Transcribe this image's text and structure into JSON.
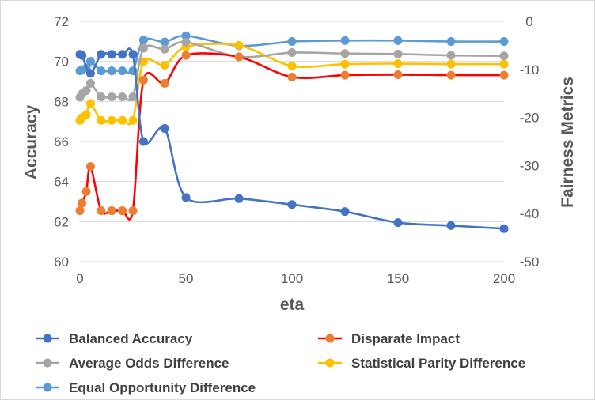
{
  "chart_data": {
    "type": "line",
    "xlabel": "eta",
    "ylabel_left": "Accuracy",
    "ylabel_right": "Fairness Metrics",
    "xlim": [
      0,
      200
    ],
    "ylim_left": [
      60,
      72
    ],
    "ylim_right": [
      -50,
      0
    ],
    "x_ticks": [
      0,
      50,
      100,
      150,
      200
    ],
    "y_ticks_left": [
      60,
      62,
      64,
      66,
      68,
      70,
      72
    ],
    "y_ticks_right": [
      -50,
      -40,
      -30,
      -20,
      -10,
      0
    ],
    "grid": true,
    "legend_position": "bottom",
    "series": [
      {
        "name": "Balanced Accuracy",
        "axis": "left",
        "line_color": "#4472c4",
        "marker_color": "#4472c4",
        "x": [
          0,
          1,
          5,
          10,
          15,
          20,
          25,
          30,
          40,
          50,
          75,
          100,
          125,
          150,
          175,
          200
        ],
        "y": [
          70.35,
          70.3,
          69.4,
          70.35,
          70.35,
          70.35,
          70.35,
          66.0,
          66.65,
          63.2,
          63.15,
          62.85,
          62.5,
          61.95,
          61.8,
          61.65
        ]
      },
      {
        "name": "Disparate Impact",
        "axis": "right",
        "line_color": "#ff0000",
        "marker_color": "#ed7d31",
        "x": [
          0,
          1,
          3,
          5,
          10,
          15,
          20,
          25,
          30,
          40,
          50,
          75,
          100,
          125,
          150,
          175,
          200
        ],
        "y": [
          -39.4,
          -37.8,
          -35.4,
          -30.2,
          -39.4,
          -39.4,
          -39.4,
          -39.4,
          -12.2,
          -12.9,
          -7.1,
          -7.4,
          -11.6,
          -11.2,
          -11.1,
          -11.2,
          -11.2
        ]
      },
      {
        "name": "Average Odds Difference",
        "axis": "right",
        "line_color": "#a5a5a5",
        "marker_color": "#a5a5a5",
        "x": [
          0,
          1,
          3,
          5,
          10,
          15,
          20,
          25,
          30,
          40,
          50,
          75,
          100,
          125,
          150,
          175,
          200
        ],
        "y": [
          -15.8,
          -15.1,
          -14.4,
          -12.9,
          -15.7,
          -15.7,
          -15.7,
          -15.7,
          -5.6,
          -5.8,
          -4.3,
          -7.4,
          -6.5,
          -6.7,
          -6.8,
          -7.1,
          -7.2
        ]
      },
      {
        "name": "Statistical Parity Difference",
        "axis": "right",
        "line_color": "#ffc000",
        "marker_color": "#ffc000",
        "x": [
          0,
          1,
          3,
          5,
          10,
          15,
          20,
          25,
          30,
          40,
          50,
          75,
          100,
          125,
          150,
          175,
          200
        ],
        "y": [
          -20.6,
          -20.0,
          -19.4,
          -17.1,
          -20.6,
          -20.6,
          -20.6,
          -20.6,
          -8.4,
          -9.1,
          -5.3,
          -5.0,
          -9.3,
          -8.9,
          -8.8,
          -8.9,
          -8.9
        ]
      },
      {
        "name": "Equal Opportunity Difference",
        "axis": "right",
        "line_color": "#5b9bd5",
        "marker_color": "#5b9bd5",
        "x": [
          0,
          1,
          3,
          5,
          10,
          15,
          20,
          25,
          30,
          40,
          50,
          75,
          100,
          125,
          150,
          175,
          200
        ],
        "y": [
          -10.3,
          -10.1,
          -9.7,
          -8.3,
          -10.3,
          -10.3,
          -10.3,
          -10.3,
          -3.9,
          -4.3,
          -3.0,
          -5.1,
          -4.2,
          -4.0,
          -4.0,
          -4.2,
          -4.2
        ]
      }
    ]
  }
}
